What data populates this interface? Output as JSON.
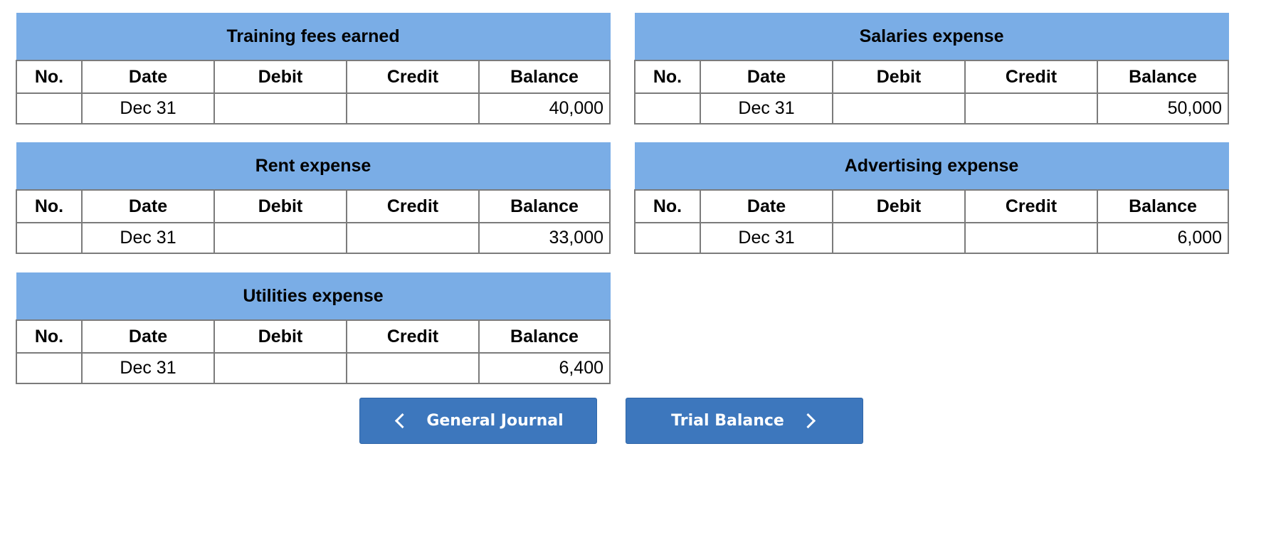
{
  "columns": {
    "no": "No.",
    "date": "Date",
    "debit": "Debit",
    "credit": "Credit",
    "balance": "Balance"
  },
  "ledgers": [
    {
      "title": "Training fees earned",
      "row": {
        "no": "",
        "date": "Dec 31",
        "debit": "",
        "credit": "",
        "balance": "40,000"
      }
    },
    {
      "title": "Salaries expense",
      "row": {
        "no": "",
        "date": "Dec 31",
        "debit": "",
        "credit": "",
        "balance": "50,000"
      }
    },
    {
      "title": "Rent expense",
      "row": {
        "no": "",
        "date": "Dec 31",
        "debit": "",
        "credit": "",
        "balance": "33,000"
      }
    },
    {
      "title": "Advertising expense",
      "row": {
        "no": "",
        "date": "Dec 31",
        "debit": "",
        "credit": "",
        "balance": "6,000"
      }
    },
    {
      "title": "Utilities expense",
      "row": {
        "no": "",
        "date": "Dec 31",
        "debit": "",
        "credit": "",
        "balance": "6,400"
      }
    }
  ],
  "nav": {
    "prev_label": "General Journal",
    "next_label": "Trial Balance"
  }
}
